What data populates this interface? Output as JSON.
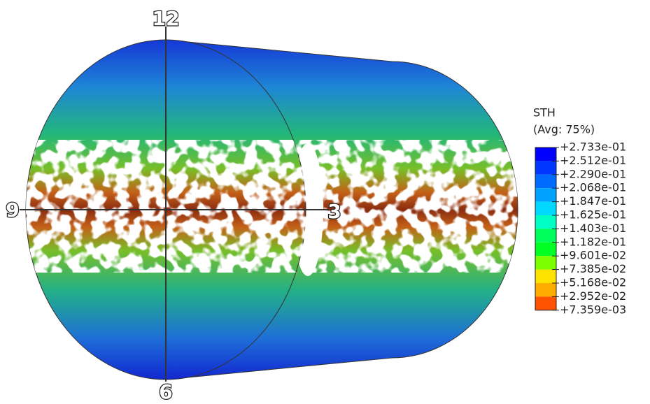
{
  "clock_labels": {
    "top": "12",
    "bottom": "6",
    "left": "9",
    "right": "3"
  },
  "legend": {
    "title": "STH",
    "subtitle": "(Avg: 75%)",
    "entries": [
      "+2.733e-01",
      "+2.512e-01",
      "+2.290e-01",
      "+2.068e-01",
      "+1.847e-01",
      "+1.625e-01",
      "+1.403e-01",
      "+1.182e-01",
      "+9.601e-02",
      "+7.385e-02",
      "+5.168e-02",
      "+2.952e-02",
      "+7.359e-03"
    ],
    "band_colors": [
      "#0000ff",
      "#0037ff",
      "#006cff",
      "#00a2ff",
      "#00d8ff",
      "#00ffc4",
      "#00ff5a",
      "#00ff22",
      "#7bff00",
      "#ffe300",
      "#ffae00",
      "#ff5300",
      "#ff0000"
    ]
  }
}
